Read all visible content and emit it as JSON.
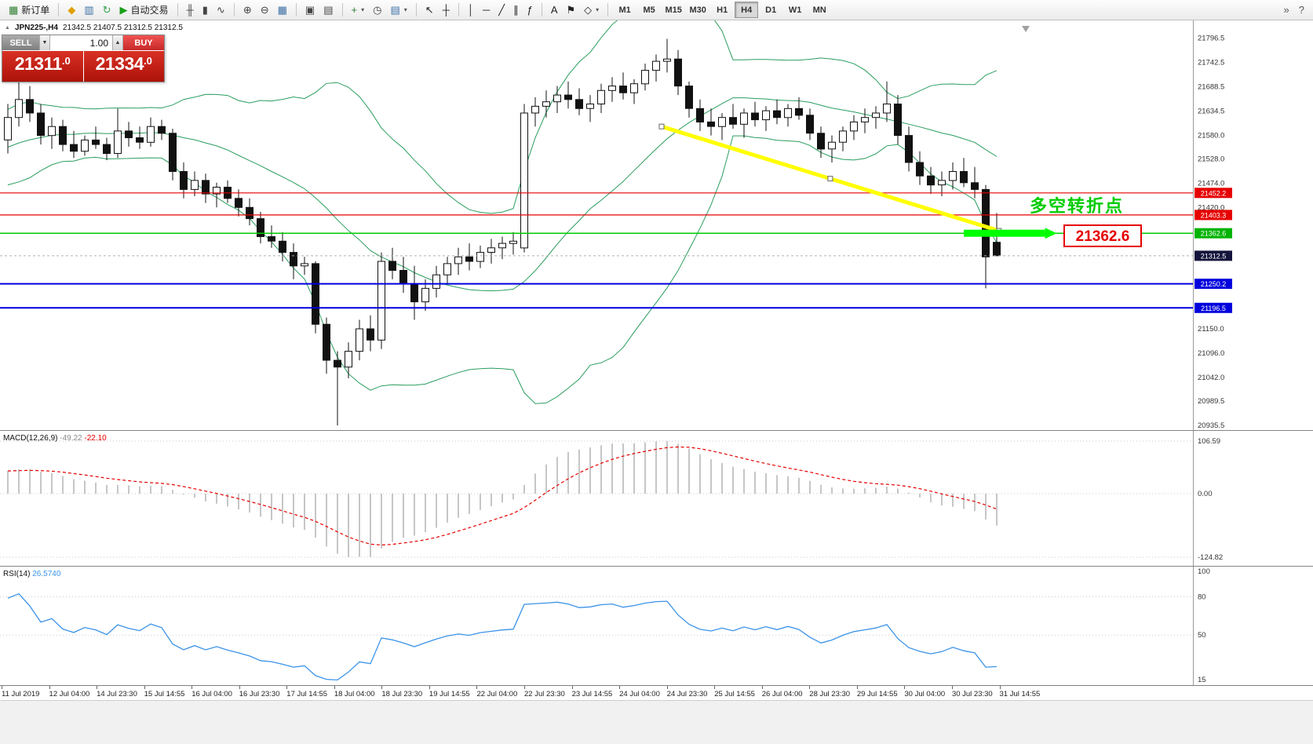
{
  "toolbar": {
    "caret_glyph": "▾",
    "groups": [
      {
        "items": [
          {
            "name": "new-order-button",
            "icon": "new-order-icon",
            "glyph": "▦",
            "glyph_color": "#2e7d32",
            "label": "新订单"
          }
        ]
      },
      {
        "items": [
          {
            "name": "charts-profile-button",
            "icon": "profile-icon",
            "glyph": "◆",
            "glyph_color": "#dfa000"
          },
          {
            "name": "market-watch-button",
            "icon": "market-watch-icon",
            "glyph": "▥",
            "glyph_color": "#3a6ea5"
          },
          {
            "name": "refresh-button",
            "icon": "refresh-icon",
            "glyph": "↻",
            "glyph_color": "#2da44e"
          },
          {
            "name": "autotrade-button",
            "icon": "autotrade-play-icon",
            "glyph": "▶",
            "glyph_color": "#18a018",
            "label": "自动交易"
          }
        ]
      },
      {
        "items": [
          {
            "name": "bar-chart-button",
            "icon": "bar-chart-icon",
            "glyph": "╫",
            "glyph_color": "#444444"
          },
          {
            "name": "candle-chart-button",
            "icon": "candlestick-icon",
            "glyph": "▮",
            "glyph_color": "#444444"
          },
          {
            "name": "line-chart-button",
            "icon": "line-chart-icon",
            "glyph": "∿",
            "glyph_color": "#444444"
          }
        ]
      },
      {
        "items": [
          {
            "name": "zoom-in-button",
            "icon": "zoom-in-icon",
            "glyph": "⊕",
            "glyph_color": "#444444"
          },
          {
            "name": "zoom-out-button",
            "icon": "zoom-out-icon",
            "glyph": "⊖",
            "glyph_color": "#444444"
          },
          {
            "name": "indicators-button",
            "icon": "indicators-grid-icon",
            "glyph": "▦",
            "glyph_color": "#3a6ea5"
          }
        ]
      },
      {
        "items": [
          {
            "name": "tile-windows-button",
            "icon": "tile-windows-icon",
            "glyph": "▣",
            "glyph_color": "#444444"
          },
          {
            "name": "cascade-windows-button",
            "icon": "cascade-windows-icon",
            "glyph": "▤",
            "glyph_color": "#444444"
          }
        ]
      },
      {
        "items": [
          {
            "name": "new-chart-button",
            "icon": "new-chart-icon",
            "glyph": "+",
            "glyph_color": "#2e7d32",
            "caret": true
          },
          {
            "name": "alerts-button",
            "icon": "clock-icon",
            "glyph": "◷",
            "glyph_color": "#444444"
          },
          {
            "name": "templates-button",
            "icon": "template-icon",
            "glyph": "▤",
            "glyph_color": "#3a6ea5",
            "caret": true
          }
        ]
      },
      {
        "items": [
          {
            "name": "cursor-button",
            "icon": "cursor-icon",
            "glyph": "↖",
            "glyph_color": "#222222"
          },
          {
            "name": "crosshair-button",
            "icon": "crosshair-icon",
            "glyph": "┼",
            "glyph_color": "#222222"
          }
        ]
      },
      {
        "items": [
          {
            "name": "vertical-line-button",
            "icon": "vertical-line-icon",
            "glyph": "│",
            "glyph_color": "#222222"
          },
          {
            "name": "horizontal-line-button",
            "icon": "horizontal-line-icon",
            "glyph": "─",
            "glyph_color": "#222222"
          },
          {
            "name": "trendline-button",
            "icon": "trendline-icon",
            "glyph": "╱",
            "glyph_color": "#222222"
          },
          {
            "name": "channel-button",
            "icon": "channel-icon",
            "glyph": "∥",
            "glyph_color": "#222222"
          },
          {
            "name": "fibonacci-button",
            "icon": "fibonacci-icon",
            "glyph": "ƒ",
            "glyph_color": "#222222"
          }
        ]
      },
      {
        "items": [
          {
            "name": "text-tool-button",
            "icon": "text-icon",
            "glyph": "A",
            "glyph_color": "#222222"
          },
          {
            "name": "label-tool-button",
            "icon": "flag-icon",
            "glyph": "⚑",
            "glyph_color": "#222222"
          },
          {
            "name": "shapes-tool-button",
            "icon": "shapes-icon",
            "glyph": "◇",
            "glyph_color": "#222222",
            "caret": true
          }
        ]
      }
    ],
    "timeframes": [
      "M1",
      "M5",
      "M15",
      "M30",
      "H1",
      "H4",
      "D1",
      "W1",
      "MN"
    ],
    "active_timeframe": "H4",
    "right_items": [
      {
        "name": "toolbar-overflow-button",
        "icon": "overflow-icon",
        "glyph": "»",
        "glyph_color": "#555555"
      },
      {
        "name": "help-button",
        "icon": "help-icon",
        "glyph": "?",
        "glyph_color": "#555555"
      }
    ]
  },
  "chart": {
    "symbol_icon": "▲",
    "symbol": "JPN225-,H4",
    "ohlc_text": "21342.5 21407.5 21312.5 21312.5",
    "trade_panel": {
      "sell_label": "SELL",
      "buy_label": "BUY",
      "lot_value": "1.00",
      "lot_down_glyph": "▼",
      "lot_up_glyph": "▲",
      "sell_price": "21311",
      "sell_price_frac": ".0",
      "buy_price": "21334",
      "buy_price_frac": ".0"
    },
    "hlines": [
      {
        "price": 21452.2,
        "color": "#e60000",
        "width": 1.2
      },
      {
        "price": 21403.3,
        "color": "#e60000",
        "width": 1.2
      },
      {
        "price": 21362.6,
        "color": "#00cc00",
        "width": 1.5
      },
      {
        "price": 21250.2,
        "color": "#0000dd",
        "width": 2
      },
      {
        "price": 21196.5,
        "color": "#0000dd",
        "width": 2
      }
    ],
    "bid_line": {
      "price": 21312.5,
      "color": "#b0b0b0"
    },
    "trendline": {
      "from_index": 59.5,
      "from_price": 21600,
      "to_index": 90.2,
      "to_price": 21368,
      "color": "#ffff00",
      "width": 5
    },
    "highlight": {
      "from_index": 87,
      "to_index": 94.4,
      "price": 21362.6,
      "color": "#00ff00",
      "thickness": 9
    },
    "annotations": {
      "turning_point_text": "多空转折点",
      "turning_point_color": "#00cc00",
      "price_label_text": "21362.6",
      "price_label_color": "#e60000"
    },
    "price_axis": {
      "scale_labels": [
        "21796.5",
        "21742.5",
        "21688.5",
        "21634.5",
        "21580.0",
        "21528.0",
        "21474.0",
        "21420.0",
        "21150.0",
        "21096.0",
        "21042.0",
        "20989.5",
        "20935.5"
      ],
      "badges": [
        {
          "text": "21452.2",
          "bg": "#e60000"
        },
        {
          "text": "21403.3",
          "bg": "#e60000"
        },
        {
          "text": "21362.6",
          "bg": "#00b300"
        },
        {
          "text": "21312.5",
          "bg": "#14143c"
        },
        {
          "text": "21250.2",
          "bg": "#0000dd"
        },
        {
          "text": "21196.5",
          "bg": "#0000dd"
        }
      ]
    },
    "time_axis": [
      "11 Jul 2019",
      "12 Jul 04:00",
      "14 Jul 23:30",
      "15 Jul 14:55",
      "16 Jul 04:00",
      "16 Jul 23:30",
      "17 Jul 14:55",
      "18 Jul 04:00",
      "18 Jul 23:30",
      "19 Jul 14:55",
      "22 Jul 04:00",
      "22 Jul 23:30",
      "23 Jul 14:55",
      "24 Jul 04:00",
      "24 Jul 23:30",
      "25 Jul 14:55",
      "26 Jul 04:00",
      "28 Jul 23:30",
      "29 Jul 14:55",
      "30 Jul 04:00",
      "30 Jul 23:30",
      "31 Jul 14:55"
    ]
  },
  "chart_data": {
    "type": "candlestick",
    "symbol": "JPN225-",
    "timeframe": "H4",
    "last_ohlc": {
      "open": 21342.5,
      "high": 21407.5,
      "low": 21312.5,
      "close": 21312.5
    },
    "price_range": {
      "max": 21815,
      "min": 20930
    },
    "warmup_closes": [
      21380,
      21400,
      21420,
      21440,
      21430,
      21450,
      21470,
      21490,
      21480,
      21500,
      21520,
      21540,
      21530,
      21550,
      21560,
      21580,
      21570,
      21560,
      21580,
      21600,
      21590,
      21580,
      21570,
      21590,
      21600
    ],
    "candles": [
      [
        21570,
        21650,
        21540,
        21620
      ],
      [
        21620,
        21700,
        21600,
        21660
      ],
      [
        21660,
        21690,
        21610,
        21630
      ],
      [
        21630,
        21650,
        21560,
        21580
      ],
      [
        21580,
        21620,
        21550,
        21600
      ],
      [
        21600,
        21615,
        21545,
        21560
      ],
      [
        21560,
        21590,
        21530,
        21545
      ],
      [
        21545,
        21580,
        21535,
        21570
      ],
      [
        21570,
        21600,
        21550,
        21560
      ],
      [
        21560,
        21575,
        21525,
        21540
      ],
      [
        21540,
        21640,
        21530,
        21590
      ],
      [
        21590,
        21610,
        21555,
        21575
      ],
      [
        21575,
        21600,
        21550,
        21565
      ],
      [
        21565,
        21620,
        21555,
        21600
      ],
      [
        21600,
        21615,
        21570,
        21585
      ],
      [
        21585,
        21595,
        21480,
        21500
      ],
      [
        21500,
        21520,
        21440,
        21460
      ],
      [
        21460,
        21500,
        21445,
        21480
      ],
      [
        21480,
        21495,
        21430,
        21450
      ],
      [
        21450,
        21475,
        21420,
        21465
      ],
      [
        21465,
        21480,
        21430,
        21440
      ],
      [
        21440,
        21460,
        21400,
        21420
      ],
      [
        21420,
        21440,
        21380,
        21395
      ],
      [
        21395,
        21410,
        21340,
        21355
      ],
      [
        21355,
        21380,
        21330,
        21345
      ],
      [
        21345,
        21365,
        21300,
        21320
      ],
      [
        21320,
        21340,
        21260,
        21290
      ],
      [
        21290,
        21310,
        21270,
        21295
      ],
      [
        21295,
        21300,
        21140,
        21160
      ],
      [
        21160,
        21175,
        21050,
        21080
      ],
      [
        21080,
        21100,
        20935,
        21065
      ],
      [
        21065,
        21120,
        21040,
        21100
      ],
      [
        21100,
        21170,
        21080,
        21150
      ],
      [
        21150,
        21180,
        21100,
        21125
      ],
      [
        21125,
        21320,
        21105,
        21300
      ],
      [
        21300,
        21330,
        21260,
        21280
      ],
      [
        21280,
        21310,
        21230,
        21250
      ],
      [
        21250,
        21290,
        21170,
        21210
      ],
      [
        21210,
        21260,
        21190,
        21240
      ],
      [
        21240,
        21290,
        21220,
        21270
      ],
      [
        21270,
        21310,
        21250,
        21295
      ],
      [
        21295,
        21330,
        21270,
        21310
      ],
      [
        21310,
        21340,
        21280,
        21300
      ],
      [
        21300,
        21335,
        21285,
        21320
      ],
      [
        21320,
        21350,
        21295,
        21330
      ],
      [
        21330,
        21355,
        21305,
        21340
      ],
      [
        21340,
        21365,
        21315,
        21345
      ],
      [
        21330,
        21650,
        21320,
        21630
      ],
      [
        21630,
        21665,
        21600,
        21645
      ],
      [
        21645,
        21680,
        21620,
        21655
      ],
      [
        21655,
        21690,
        21630,
        21670
      ],
      [
        21670,
        21700,
        21640,
        21660
      ],
      [
        21660,
        21685,
        21625,
        21640
      ],
      [
        21640,
        21670,
        21610,
        21650
      ],
      [
        21650,
        21695,
        21630,
        21680
      ],
      [
        21680,
        21710,
        21655,
        21690
      ],
      [
        21690,
        21720,
        21660,
        21675
      ],
      [
        21675,
        21705,
        21650,
        21695
      ],
      [
        21695,
        21740,
        21680,
        21725
      ],
      [
        21725,
        21760,
        21700,
        21745
      ],
      [
        21745,
        21795,
        21720,
        21750
      ],
      [
        21750,
        21770,
        21670,
        21690
      ],
      [
        21690,
        21700,
        21620,
        21640
      ],
      [
        21640,
        21660,
        21590,
        21610
      ],
      [
        21610,
        21640,
        21580,
        21600
      ],
      [
        21600,
        21630,
        21570,
        21620
      ],
      [
        21620,
        21650,
        21595,
        21605
      ],
      [
        21605,
        21640,
        21575,
        21630
      ],
      [
        21630,
        21655,
        21600,
        21615
      ],
      [
        21615,
        21645,
        21590,
        21635
      ],
      [
        21635,
        21660,
        21605,
        21620
      ],
      [
        21620,
        21650,
        21600,
        21640
      ],
      [
        21640,
        21665,
        21615,
        21625
      ],
      [
        21625,
        21640,
        21570,
        21585
      ],
      [
        21585,
        21600,
        21530,
        21550
      ],
      [
        21550,
        21580,
        21520,
        21565
      ],
      [
        21565,
        21600,
        21545,
        21590
      ],
      [
        21590,
        21625,
        21570,
        21610
      ],
      [
        21610,
        21640,
        21585,
        21620
      ],
      [
        21620,
        21645,
        21595,
        21630
      ],
      [
        21630,
        21700,
        21610,
        21650
      ],
      [
        21650,
        21670,
        21560,
        21580
      ],
      [
        21580,
        21600,
        21500,
        21520
      ],
      [
        21520,
        21545,
        21470,
        21490
      ],
      [
        21490,
        21510,
        21450,
        21470
      ],
      [
        21470,
        21500,
        21445,
        21480
      ],
      [
        21480,
        21520,
        21460,
        21500
      ],
      [
        21500,
        21530,
        21465,
        21475
      ],
      [
        21475,
        21510,
        21440,
        21460
      ],
      [
        21460,
        21470,
        21240,
        21310
      ],
      [
        21342.5,
        21407.5,
        21312.5,
        21312.5
      ]
    ],
    "bollinger": {
      "period": 20,
      "deviation": 2,
      "color": "#2a9d5f"
    },
    "macd": {
      "label": "MACD(12,26,9)",
      "fast": 12,
      "slow": 26,
      "signal": 9,
      "main_value": "-49.22",
      "signal_value": "-22.10",
      "scale": [
        "106.59",
        "0.00",
        "-124.82"
      ],
      "bar_color": "#b8b8b8",
      "signal_color": "#e60000"
    },
    "rsi": {
      "label": "RSI(14)",
      "period": 14,
      "value": "26.5740",
      "scale": [
        "100",
        "80",
        "50",
        "15"
      ],
      "levels": [
        80,
        50
      ],
      "color": "#3b93e8"
    }
  }
}
